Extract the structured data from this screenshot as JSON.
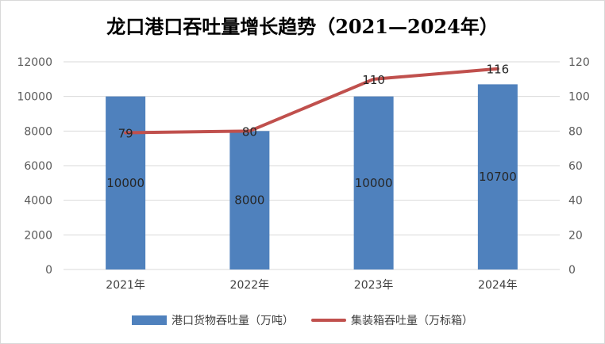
{
  "chart_data": {
    "type": "bar",
    "title": "龙口港口吞吐量增长趋势（2021—2024年）",
    "categories": [
      "2021年",
      "2022年",
      "2023年",
      "2024年"
    ],
    "series": [
      {
        "name": "港口货物吞吐量（万吨）",
        "type": "bar",
        "axis": "left",
        "values": [
          10000,
          8000,
          10000,
          10700
        ],
        "color": "#4f81bd"
      },
      {
        "name": "集装箱吞吐量（万标箱）",
        "type": "line",
        "axis": "right",
        "values": [
          79,
          80,
          110,
          116
        ],
        "color": "#c0504d"
      }
    ],
    "y_left": {
      "min": 0,
      "max": 12000,
      "ticks": [
        "0",
        "2000",
        "4000",
        "6000",
        "8000",
        "10000",
        "12000"
      ]
    },
    "y_right": {
      "min": 0,
      "max": 120,
      "ticks": [
        "0",
        "20",
        "40",
        "60",
        "80",
        "100",
        "120"
      ]
    },
    "grid": true,
    "legend_position": "bottom"
  }
}
